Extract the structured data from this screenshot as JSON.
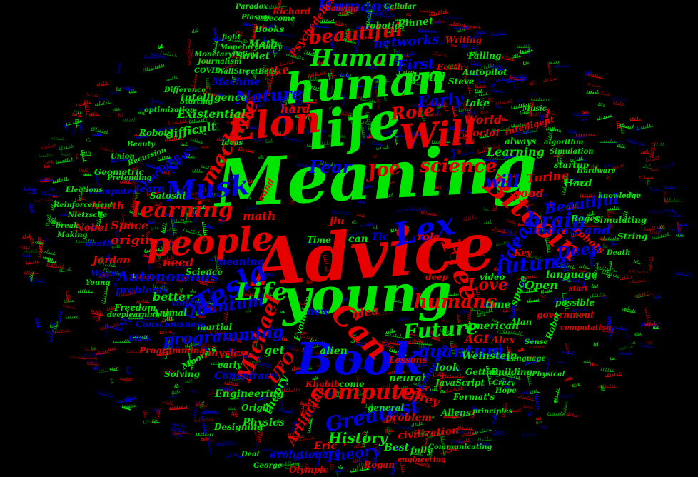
{
  "colors": {
    "background": "#000000",
    "green": "#00e600",
    "red": "#e60000",
    "blue": "#0000e6"
  },
  "words": [
    {
      "text": "Meaning",
      "color": "green"
    },
    {
      "text": "Advice",
      "color": "red"
    },
    {
      "text": "young",
      "color": "green"
    },
    {
      "text": "Book",
      "color": "blue"
    },
    {
      "text": "life",
      "color": "green"
    },
    {
      "text": "human",
      "color": "green"
    },
    {
      "text": "Elon",
      "color": "red"
    },
    {
      "text": "Will",
      "color": "red"
    },
    {
      "text": "people",
      "color": "red"
    },
    {
      "text": "Human",
      "color": "green"
    },
    {
      "text": "beautiful",
      "color": "red"
    },
    {
      "text": "Humans",
      "color": "blue"
    },
    {
      "text": "Bitcoin",
      "color": "red"
    },
    {
      "text": "Tesla",
      "color": "blue"
    },
    {
      "text": "Musk",
      "color": "blue"
    },
    {
      "text": "learning",
      "color": "red"
    },
    {
      "text": "Lex",
      "color": "blue"
    },
    {
      "text": "Free",
      "color": "red"
    },
    {
      "text": "Life",
      "color": "green"
    },
    {
      "text": "computer",
      "color": "red"
    },
    {
      "text": "Can",
      "color": "red"
    },
    {
      "text": "Future",
      "color": "green"
    },
    {
      "text": "Greatest",
      "color": "blue"
    },
    {
      "text": "Michael",
      "color": "red"
    },
    {
      "text": "quantum",
      "color": "blue"
    },
    {
      "text": "future",
      "color": "blue"
    },
    {
      "text": "brain",
      "color": "blue"
    },
    {
      "text": "humans",
      "color": "red"
    },
    {
      "text": "Role",
      "color": "red"
    },
    {
      "text": "Joe",
      "color": "red"
    },
    {
      "text": "science",
      "color": "red"
    },
    {
      "text": "Fear",
      "color": "blue"
    },
    {
      "text": "machine",
      "color": "red"
    },
    {
      "text": "Nature",
      "color": "blue"
    },
    {
      "text": "Early",
      "color": "blue"
    },
    {
      "text": "First",
      "color": "blue"
    },
    {
      "text": "networks",
      "color": "blue"
    },
    {
      "text": "programming",
      "color": "blue"
    },
    {
      "text": "Quantum",
      "color": "blue"
    },
    {
      "text": "Autonomous",
      "color": "blue"
    },
    {
      "text": "History",
      "color": "green"
    },
    {
      "text": "Theory",
      "color": "blue"
    },
    {
      "text": "Love",
      "color": "red"
    },
    {
      "text": "understand",
      "color": "blue"
    },
    {
      "text": "Deep",
      "color": "blue"
    },
    {
      "text": "ideas",
      "color": "blue"
    },
    {
      "text": "will",
      "color": "blue"
    },
    {
      "text": "Beautiful",
      "color": "blue"
    },
    {
      "text": "Existential",
      "color": "green"
    },
    {
      "text": "intelligence",
      "color": "green"
    },
    {
      "text": "Machine",
      "color": "blue"
    },
    {
      "text": "like",
      "color": "red"
    },
    {
      "text": "hard",
      "color": "red"
    },
    {
      "text": "difficult",
      "color": "green"
    },
    {
      "text": "Soviet",
      "color": "green"
    },
    {
      "text": "Math",
      "color": "green"
    },
    {
      "text": "Books",
      "color": "green"
    },
    {
      "text": "Planet",
      "color": "green"
    },
    {
      "text": "Psychedelics",
      "color": "red"
    },
    {
      "text": "build",
      "color": "green"
    },
    {
      "text": "World",
      "color": "red"
    },
    {
      "text": "Social",
      "color": "red"
    },
    {
      "text": "Learning",
      "color": "green"
    },
    {
      "text": "Turing",
      "color": "red"
    },
    {
      "text": "good",
      "color": "red"
    },
    {
      "text": "take",
      "color": "green"
    },
    {
      "text": "Intelligent",
      "color": "red"
    },
    {
      "text": "Space",
      "color": "red"
    },
    {
      "text": "North",
      "color": "red"
    },
    {
      "text": "Nobel",
      "color": "red"
    },
    {
      "text": "origin",
      "color": "red"
    },
    {
      "text": "math",
      "color": "red"
    },
    {
      "text": "need",
      "color": "red"
    },
    {
      "text": "better",
      "color": "green"
    },
    {
      "text": "meaning",
      "color": "blue"
    },
    {
      "text": "New",
      "color": "blue"
    },
    {
      "text": "YouTube",
      "color": "blue"
    },
    {
      "text": "learn",
      "color": "blue"
    },
    {
      "text": "Computer",
      "color": "blue"
    },
    {
      "text": "Jordan",
      "color": "red"
    },
    {
      "text": "Waymo",
      "color": "blue"
    },
    {
      "text": "problems",
      "color": "blue"
    },
    {
      "text": "physics",
      "color": "red"
    },
    {
      "text": "Moore's",
      "color": "green"
    },
    {
      "text": "Engineering",
      "color": "green"
    },
    {
      "text": "Conspiracy",
      "color": "blue"
    },
    {
      "text": "theory",
      "color": "green"
    },
    {
      "text": "UFO",
      "color": "red"
    },
    {
      "text": "Artificial",
      "color": "red"
    },
    {
      "text": "neural",
      "color": "green"
    },
    {
      "text": "Jeffrey",
      "color": "red"
    },
    {
      "text": "problem",
      "color": "red"
    },
    {
      "text": "civilization",
      "color": "red"
    },
    {
      "text": "Eric",
      "color": "red"
    },
    {
      "text": "evolutionary",
      "color": "blue"
    },
    {
      "text": "Best",
      "color": "green"
    },
    {
      "text": "Rogan",
      "color": "red"
    },
    {
      "text": "Physics",
      "color": "green"
    },
    {
      "text": "alien",
      "color": "green"
    },
    {
      "text": "idea",
      "color": "red"
    },
    {
      "text": "get",
      "color": "green"
    },
    {
      "text": "new",
      "color": "blue"
    },
    {
      "text": "American",
      "color": "green"
    },
    {
      "text": "AGI",
      "color": "red"
    },
    {
      "text": "Alex",
      "color": "red"
    },
    {
      "text": "Weinstein",
      "color": "green"
    },
    {
      "text": "look",
      "color": "green"
    },
    {
      "text": "JavaScript",
      "color": "green"
    },
    {
      "text": "Open",
      "color": "green"
    },
    {
      "text": "time",
      "color": "green"
    },
    {
      "text": "space",
      "color": "green"
    },
    {
      "text": "language",
      "color": "green"
    },
    {
      "text": "possible",
      "color": "green"
    },
    {
      "text": "Tic",
      "color": "blue"
    },
    {
      "text": "Toe",
      "color": "blue"
    },
    {
      "text": "role",
      "color": "red"
    },
    {
      "text": "Hard",
      "color": "green"
    },
    {
      "text": "robots",
      "color": "red"
    },
    {
      "text": "Simulating",
      "color": "green"
    },
    {
      "text": "String",
      "color": "green"
    },
    {
      "text": "Roger",
      "color": "green"
    },
    {
      "text": "Satoshi",
      "color": "green"
    },
    {
      "text": "Robots",
      "color": "green"
    },
    {
      "text": "Richard",
      "color": "red"
    },
    {
      "text": "robotics",
      "color": "green"
    },
    {
      "text": "Autopilot",
      "color": "green"
    },
    {
      "text": "Earth",
      "color": "red"
    },
    {
      "text": "Writing",
      "color": "red"
    },
    {
      "text": "Falling",
      "color": "green"
    },
    {
      "text": "Steve",
      "color": "green"
    },
    {
      "text": "Fermat's",
      "color": "green"
    },
    {
      "text": "Aliens",
      "color": "green"
    },
    {
      "text": "Getting",
      "color": "green"
    },
    {
      "text": "Building",
      "color": "green"
    },
    {
      "text": "Kahneman",
      "color": "blue"
    },
    {
      "text": "Evolution",
      "color": "green"
    },
    {
      "text": "martial",
      "color": "green"
    },
    {
      "text": "violence",
      "color": "blue"
    },
    {
      "text": "Animal",
      "color": "green"
    },
    {
      "text": "Freedom",
      "color": "green"
    },
    {
      "text": "Origin",
      "color": "green"
    },
    {
      "text": "Designing",
      "color": "green"
    },
    {
      "text": "Lessons",
      "color": "red"
    },
    {
      "text": "general",
      "color": "green"
    },
    {
      "text": "come",
      "color": "green"
    },
    {
      "text": "Khabib",
      "color": "red"
    },
    {
      "text": "early",
      "color": "green"
    },
    {
      "text": "Programming",
      "color": "red"
    },
    {
      "text": "Solving",
      "color": "green"
    },
    {
      "text": "Consciousness",
      "color": "blue"
    },
    {
      "text": "Olympic",
      "color": "red"
    },
    {
      "text": "COVID",
      "color": "green"
    },
    {
      "text": "Reinforcement",
      "color": "green"
    },
    {
      "text": "deeplearning.ai",
      "color": "green"
    },
    {
      "text": "Geometric",
      "color": "green"
    },
    {
      "text": "mind",
      "color": "red"
    },
    {
      "text": "Time",
      "color": "green"
    },
    {
      "text": "jiu",
      "color": "red"
    },
    {
      "text": "can",
      "color": "green"
    },
    {
      "text": "startup",
      "color": "green"
    },
    {
      "text": "Hardware",
      "color": "green"
    },
    {
      "text": "always",
      "color": "green"
    },
    {
      "text": "Key",
      "color": "red"
    },
    {
      "text": "video",
      "color": "green"
    },
    {
      "text": "government",
      "color": "red"
    },
    {
      "text": "Robot",
      "color": "green"
    },
    {
      "text": "computation",
      "color": "red"
    },
    {
      "text": "Alan",
      "color": "green"
    },
    {
      "text": "Dancing",
      "color": "red"
    },
    {
      "text": "Cellular",
      "color": "green"
    },
    {
      "text": "MonetaryPolicy",
      "color": "green"
    },
    {
      "text": "knowledge",
      "color": "green"
    },
    {
      "text": "deep",
      "color": "red"
    },
    {
      "text": "start",
      "color": "red"
    },
    {
      "text": "Deal",
      "color": "green"
    },
    {
      "text": "George",
      "color": "green"
    },
    {
      "text": "fully",
      "color": "green"
    },
    {
      "text": "engineering",
      "color": "red"
    },
    {
      "text": "Communicating",
      "color": "green"
    },
    {
      "text": "principles",
      "color": "green"
    },
    {
      "text": "Hope",
      "color": "green"
    },
    {
      "text": "Death",
      "color": "green"
    },
    {
      "text": "Physical",
      "color": "green"
    },
    {
      "text": "Language",
      "color": "green"
    },
    {
      "text": "Crazy",
      "color": "green"
    },
    {
      "text": "Sense",
      "color": "green"
    },
    {
      "text": "Science",
      "color": "green"
    },
    {
      "text": "Young",
      "color": "green"
    },
    {
      "text": "Making",
      "color": "green"
    },
    {
      "text": "break",
      "color": "green"
    },
    {
      "text": "death",
      "color": "blue"
    },
    {
      "text": "Ideas",
      "color": "green"
    },
    {
      "text": "Beauty",
      "color": "green"
    },
    {
      "text": "Union",
      "color": "green"
    },
    {
      "text": "Recursion",
      "color": "green"
    },
    {
      "text": "Difference",
      "color": "green"
    },
    {
      "text": "optimization",
      "color": "green"
    },
    {
      "text": "Starting",
      "color": "green"
    },
    {
      "text": "Paradox",
      "color": "green"
    },
    {
      "text": "Plasma",
      "color": "green"
    },
    {
      "text": "become",
      "color": "green"
    },
    {
      "text": "fight",
      "color": "green"
    },
    {
      "text": "Journalism",
      "color": "green"
    },
    {
      "text": "WallStreetBets",
      "color": "green"
    },
    {
      "text": "Music",
      "color": "green"
    },
    {
      "text": "algorithm",
      "color": "green"
    },
    {
      "text": "Simulation",
      "color": "green"
    },
    {
      "text": "Elections",
      "color": "green"
    },
    {
      "text": "Nietzsche",
      "color": "green"
    },
    {
      "text": "Pretending",
      "color": "green"
    },
    {
      "text": "Black",
      "color": "blue"
    },
    {
      "text": "Mind",
      "color": "blue"
    }
  ]
}
